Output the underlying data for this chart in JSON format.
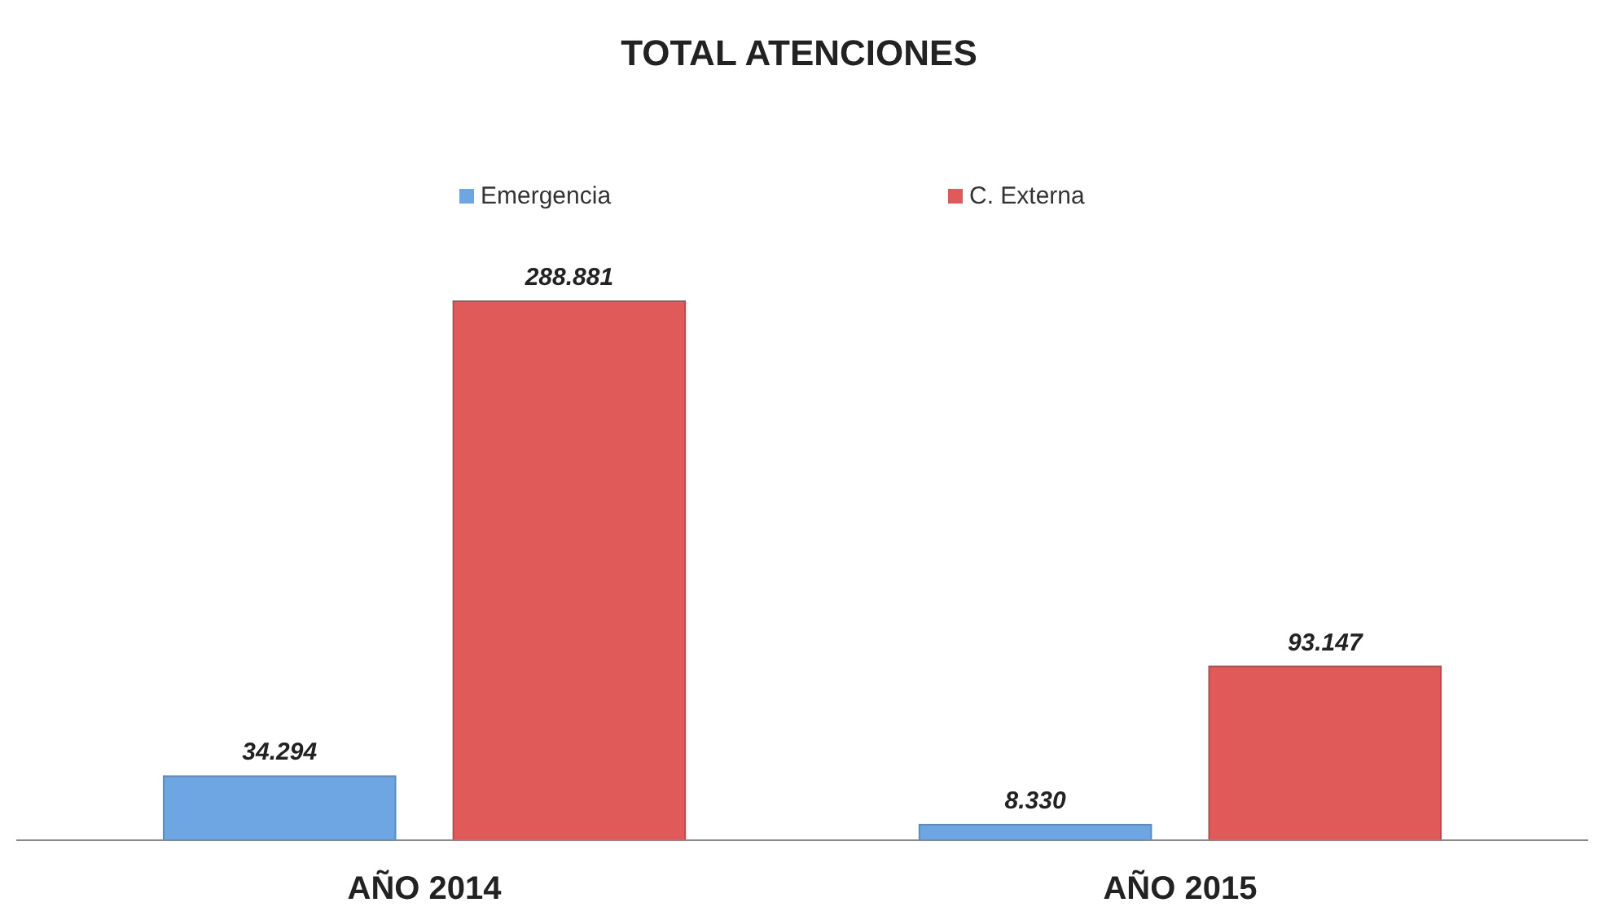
{
  "chart_data": {
    "type": "bar",
    "title": "TOTAL ATENCIONES",
    "categories": [
      "AÑO 2014",
      "AÑO 2015"
    ],
    "series": [
      {
        "name": "Emergencia",
        "color": "#6ea6e4",
        "values": [
          34294,
          8330
        ],
        "value_labels": [
          "34.294",
          "8.330"
        ]
      },
      {
        "name": "C. Externa",
        "color": "#e05a5a",
        "values": [
          288881,
          93147
        ],
        "value_labels": [
          "288.881",
          "93.147"
        ]
      }
    ],
    "legend": "top"
  }
}
